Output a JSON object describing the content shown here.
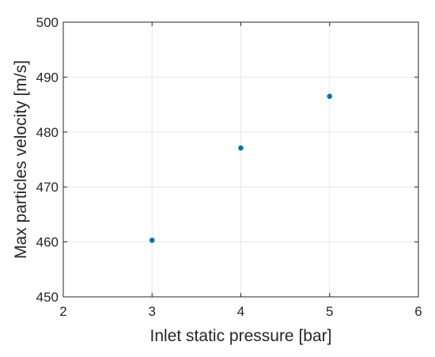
{
  "chart_data": {
    "type": "scatter",
    "title": "",
    "xlabel": "Inlet static pressure [bar]",
    "ylabel": "Max particles velocity [m/s]",
    "xlim": [
      2,
      6
    ],
    "ylim": [
      450,
      500
    ],
    "xticks": [
      2,
      3,
      4,
      5,
      6
    ],
    "yticks": [
      450,
      460,
      470,
      480,
      490,
      500
    ],
    "grid": true,
    "series": [
      {
        "color": "#0072bd",
        "points": [
          {
            "x": 3,
            "y": 460.3
          },
          {
            "x": 4,
            "y": 477.1
          },
          {
            "x": 5,
            "y": 486.5
          }
        ]
      }
    ]
  }
}
